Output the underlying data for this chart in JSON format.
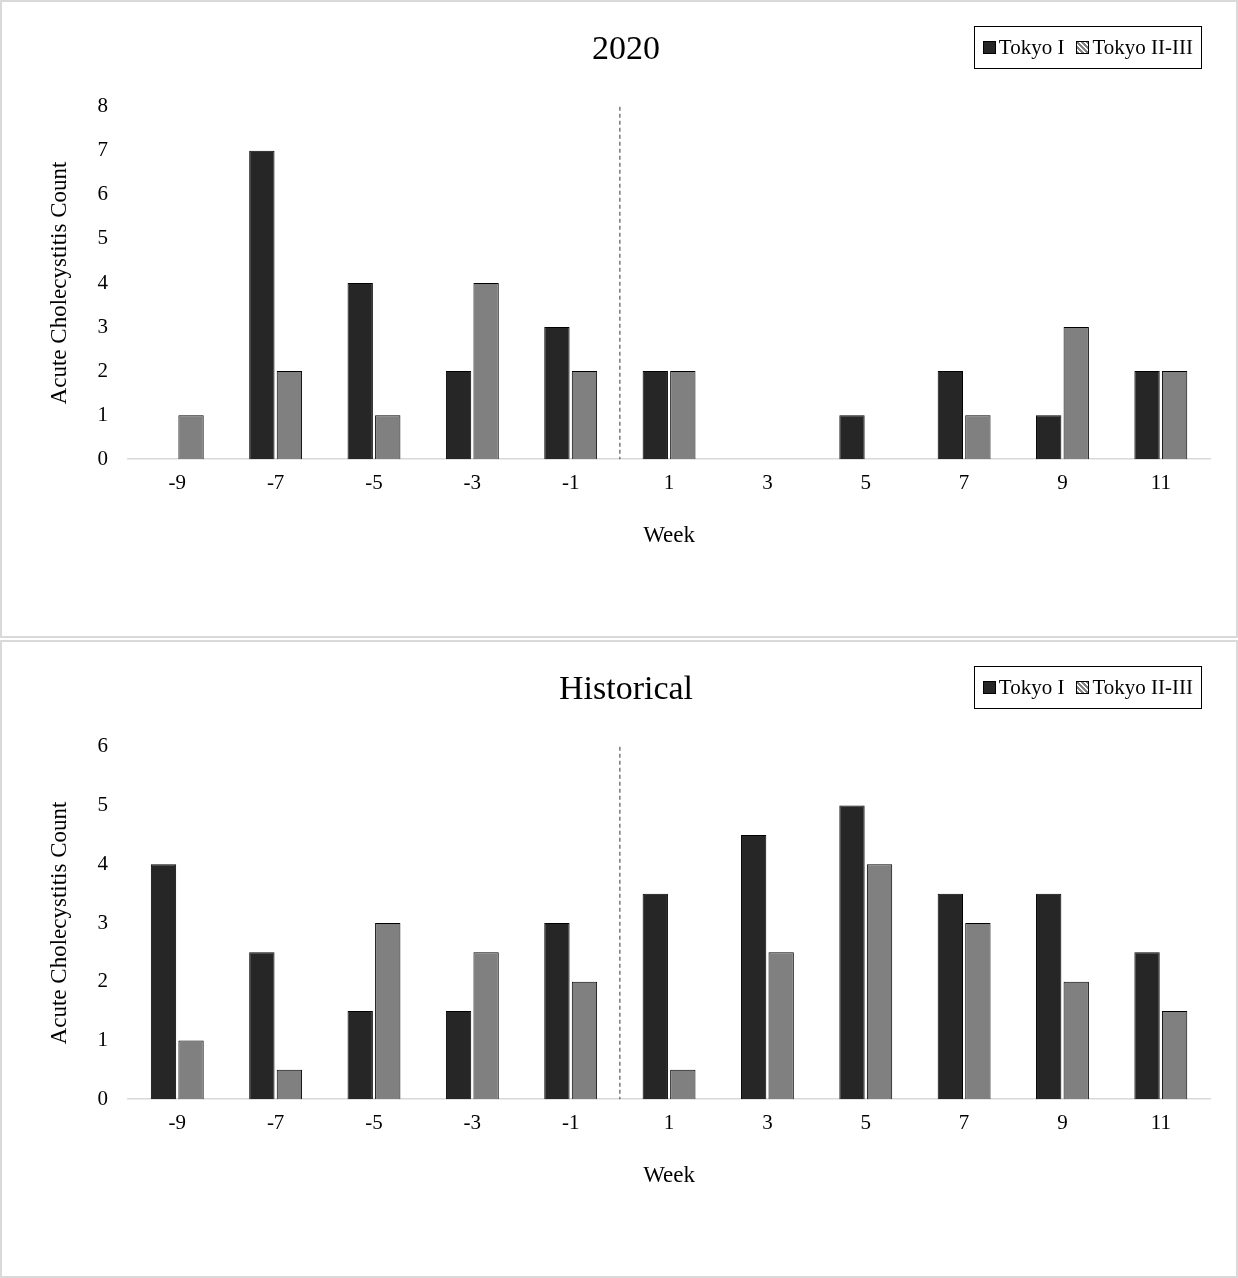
{
  "chart_data": [
    {
      "type": "bar",
      "title": "2020",
      "xlabel": "Week",
      "ylabel": "Acute Cholecystitis Count",
      "x": [
        -9,
        -7,
        -5,
        -3,
        -1,
        1,
        3,
        5,
        7,
        9,
        11
      ],
      "xlim": [
        -10,
        12
      ],
      "xticks": [
        -9,
        -7,
        -5,
        -3,
        -1,
        1,
        3,
        5,
        7,
        9,
        11
      ],
      "ylim": [
        0,
        8
      ],
      "yticks": [
        0,
        1,
        2,
        3,
        4,
        5,
        6,
        7,
        8
      ],
      "legend": "top right",
      "ref_lines": [
        {
          "axis": "x",
          "value": 0,
          "color": "#595959",
          "line_style": "dashed"
        }
      ],
      "series": [
        {
          "name": "Tokyo I",
          "color": "#262626",
          "values": [
            0,
            7,
            4,
            2,
            3,
            2,
            0,
            1,
            2,
            1,
            2
          ]
        },
        {
          "name": "Tokyo II-III",
          "color": "#808080",
          "values": [
            1,
            2,
            1,
            4,
            2,
            2,
            0,
            0,
            1,
            3,
            2
          ]
        }
      ]
    },
    {
      "type": "bar",
      "title": "Historical",
      "xlabel": "Week",
      "ylabel": "Acute Cholecystitis Count",
      "x": [
        -9,
        -7,
        -5,
        -3,
        -1,
        1,
        3,
        5,
        7,
        9,
        11
      ],
      "xlim": [
        -10,
        12
      ],
      "xticks": [
        -9,
        -7,
        -5,
        -3,
        -1,
        1,
        3,
        5,
        7,
        9,
        11
      ],
      "ylim": [
        0,
        6
      ],
      "yticks": [
        0,
        1,
        2,
        3,
        4,
        5,
        6
      ],
      "legend": "top right",
      "ref_lines": [
        {
          "axis": "x",
          "value": 0,
          "color": "#595959",
          "line_style": "dashed"
        }
      ],
      "series": [
        {
          "name": "Tokyo I",
          "color": "#262626",
          "values": [
            4,
            2.5,
            1.5,
            1.5,
            3,
            3.5,
            4.5,
            5,
            3.5,
            3.5,
            2.5
          ]
        },
        {
          "name": "Tokyo II-III",
          "color": "#808080",
          "values": [
            1,
            0.5,
            3,
            2.5,
            2,
            0.5,
            2.5,
            4,
            3,
            2,
            1.5
          ]
        }
      ]
    }
  ]
}
